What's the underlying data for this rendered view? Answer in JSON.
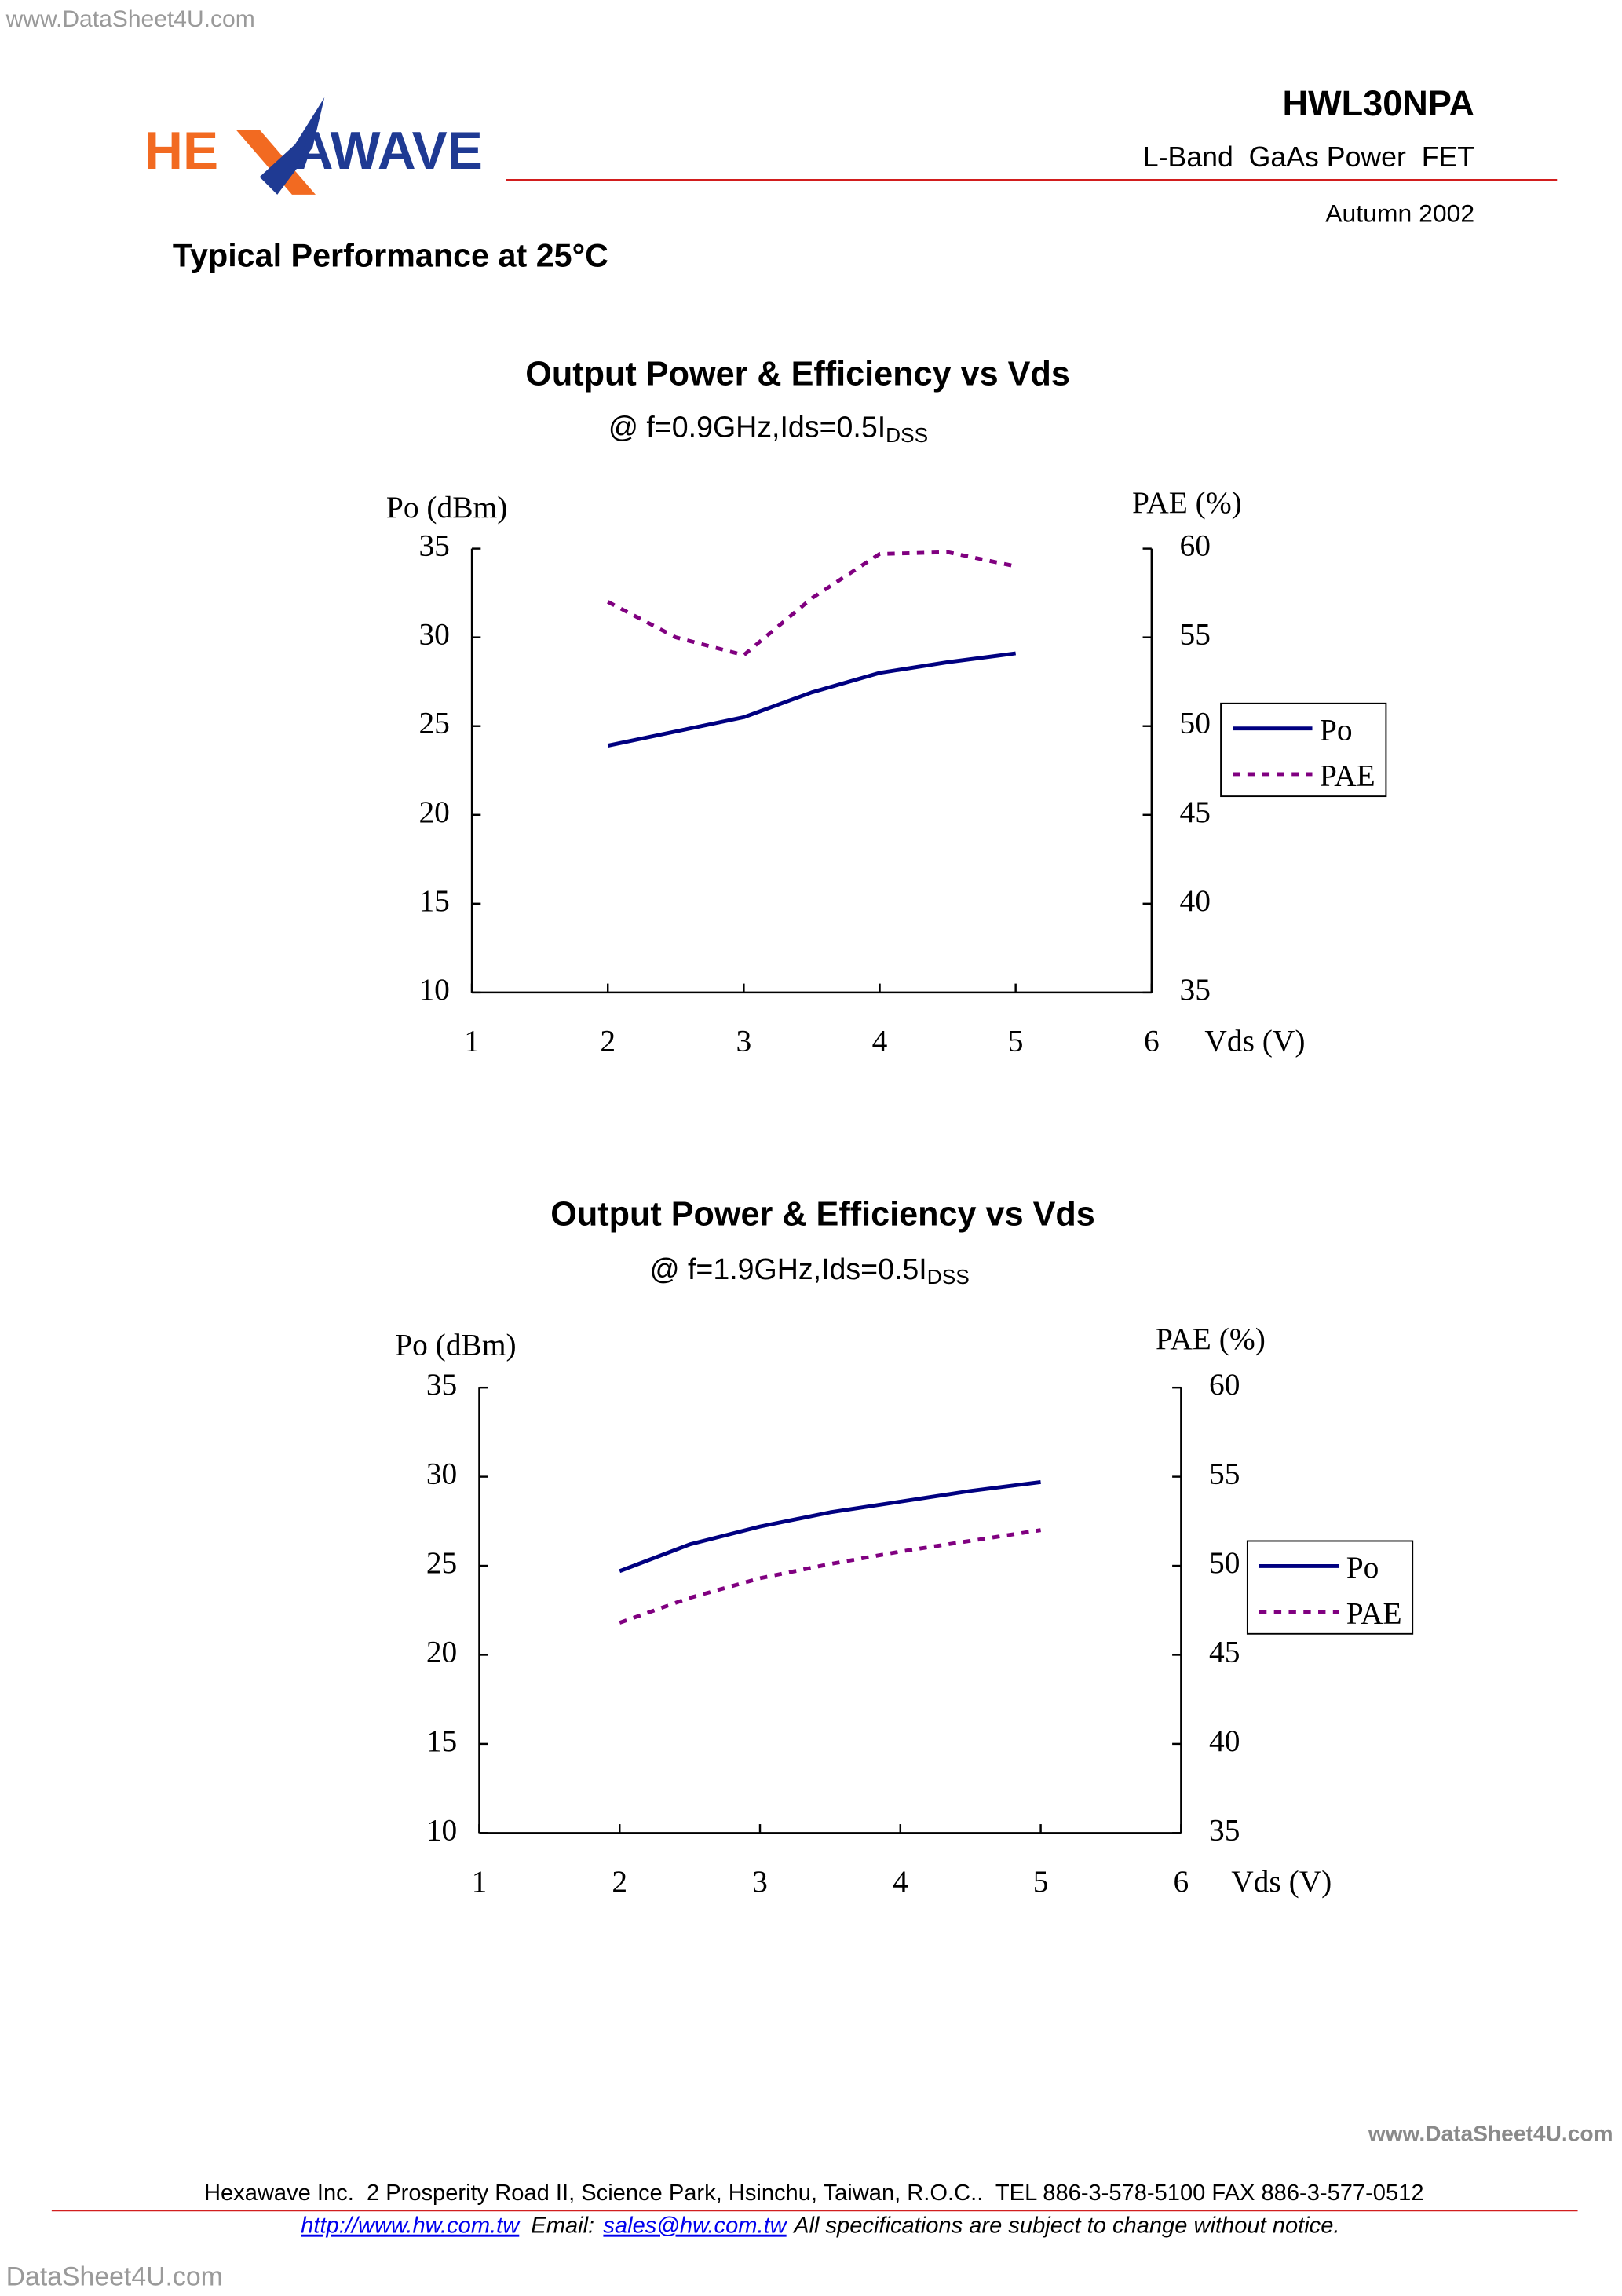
{
  "header": {
    "watermark": "www.DataSheet4U.com",
    "logo_left": "HE",
    "logo_right": "AWAVE",
    "part_number": "HWL30NPA",
    "description": "L-Band  GaAs Power  FET",
    "date": "Autumn 2002",
    "section_title": "Typical Performance at 25°C"
  },
  "chart_data": [
    {
      "type": "line",
      "title": "Output Power & Efficiency vs Vds",
      "subtitle": "@ f=0.9GHz,Ids=0.5I",
      "subtitle_subscript": "DSS",
      "y_label": "Po (dBm)",
      "y2_label": "PAE (%)",
      "x_label": "Vds (V)",
      "x": [
        2,
        2.5,
        3,
        3.5,
        4,
        4.5,
        5
      ],
      "series": [
        {
          "name": "Po",
          "color": "#000080",
          "values": [
            23.9,
            24.7,
            25.5,
            26.9,
            28.0,
            28.6,
            29.1
          ]
        },
        {
          "name": "PAE",
          "color": "#800080",
          "axis": "y2",
          "dashed": true,
          "values": [
            57.0,
            55.0,
            54.0,
            57.2,
            59.7,
            59.8,
            59.0
          ]
        }
      ],
      "xlim": [
        1,
        6
      ],
      "xticks": [
        1,
        2,
        3,
        4,
        5,
        6
      ],
      "ylim": [
        10,
        35
      ],
      "yticks": [
        10,
        15,
        20,
        25,
        30,
        35
      ],
      "y2lim": [
        35,
        60
      ],
      "y2ticks": [
        35,
        40,
        45,
        50,
        55,
        60
      ],
      "grid": false,
      "legend": "right"
    },
    {
      "type": "line",
      "title": "Output Power & Efficiency vs Vds",
      "subtitle": "@ f=1.9GHz,Ids=0.5I",
      "subtitle_subscript": "DSS",
      "y_label": "Po (dBm)",
      "y2_label": "PAE (%)",
      "x_label": "Vds (V)",
      "x": [
        2,
        2.5,
        3,
        3.5,
        4,
        4.5,
        5
      ],
      "series": [
        {
          "name": "Po",
          "color": "#000080",
          "values": [
            24.7,
            26.2,
            27.2,
            28.0,
            28.6,
            29.2,
            29.7
          ]
        },
        {
          "name": "PAE",
          "color": "#800080",
          "axis": "y2",
          "dashed": true,
          "values": [
            46.8,
            48.2,
            49.3,
            50.1,
            50.8,
            51.4,
            52.0
          ]
        }
      ],
      "xlim": [
        1,
        6
      ],
      "xticks": [
        1,
        2,
        3,
        4,
        5,
        6
      ],
      "ylim": [
        10,
        35
      ],
      "yticks": [
        10,
        15,
        20,
        25,
        30,
        35
      ],
      "y2lim": [
        35,
        60
      ],
      "y2ticks": [
        35,
        40,
        45,
        50,
        55,
        60
      ],
      "grid": false,
      "legend": "right"
    }
  ],
  "footer": {
    "address": "Hexawave Inc.  2 Prosperity Road II, Science Park, Hsinchu, Taiwan, R.O.C..  TEL 886-3-578-5100 FAX 886-3-577-0512",
    "url": "http://www.hw.com.tw",
    "email_label": "Email:",
    "email": "sales@hw.com.tw",
    "notice": "All specifications are subject to change without notice.",
    "watermark_right": "www.DataSheet4U.com",
    "watermark_bottom": "DataSheet4U.com"
  }
}
